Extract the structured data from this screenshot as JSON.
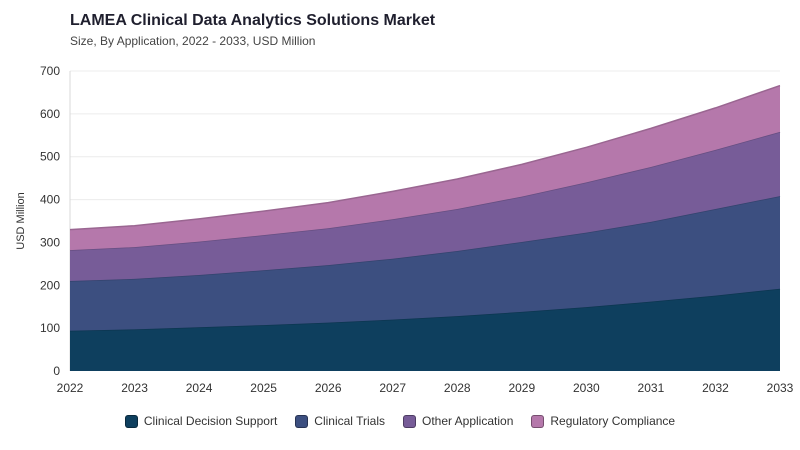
{
  "title": "LAMEA Clinical Data Analytics Solutions Market",
  "subtitle": "Size, By Application, 2022 - 2033, USD Million",
  "chart_data": {
    "type": "area",
    "stacked": true,
    "title": "LAMEA Clinical Data Analytics Solutions Market",
    "subtitle": "Size, By Application, 2022 - 2033, USD Million",
    "xlabel": "",
    "ylabel": "USD Million",
    "ylim": [
      0,
      700
    ],
    "yticks": [
      0,
      100,
      200,
      300,
      400,
      500,
      600,
      700
    ],
    "x": [
      "2022",
      "2023",
      "2024",
      "2025",
      "2026",
      "2027",
      "2028",
      "2029",
      "2030",
      "2031",
      "2032",
      "2033"
    ],
    "grid": true,
    "legend": "bottom",
    "series": [
      {
        "name": "Clinical Decision Support",
        "color": "#0e3f5e",
        "values": [
          94,
          97,
          102,
          107,
          113,
          120,
          128,
          138,
          149,
          162,
          176,
          192
        ]
      },
      {
        "name": "Clinical Trials",
        "color": "#3c4f80",
        "values": [
          116,
          118,
          122,
          128,
          134,
          142,
          152,
          163,
          174,
          186,
          202,
          216
        ]
      },
      {
        "name": "Other Application",
        "color": "#775c98",
        "values": [
          72,
          74,
          78,
          82,
          86,
          92,
          98,
          106,
          117,
          128,
          138,
          150
        ]
      },
      {
        "name": "Regulatory Compliance",
        "color": "#b578ab",
        "values": [
          48,
          50,
          53,
          56,
          60,
          65,
          70,
          75,
          82,
          90,
          98,
          108
        ]
      }
    ]
  }
}
